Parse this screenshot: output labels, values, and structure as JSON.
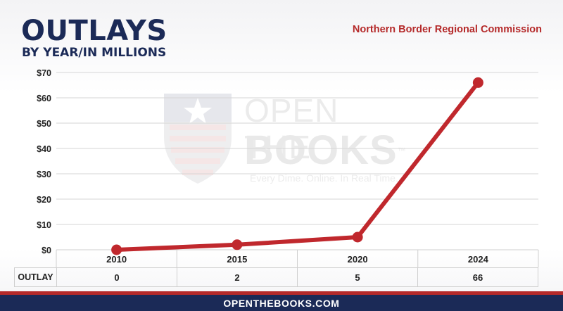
{
  "header": {
    "title": "OUTLAYS",
    "subtitle": "BY YEAR/IN MILLIONS",
    "agency": "Northern Border Regional Commission"
  },
  "watermark": {
    "line1": "OPEN THE",
    "line2": "BOOKS",
    "tm": "™",
    "tagline": "Every Dime. Online. In Real Time."
  },
  "footer": {
    "site": "OPENTHEBOOKS.COM"
  },
  "colors": {
    "navy": "#1b2a57",
    "red": "#b52a2a",
    "line": "#c0282d"
  },
  "chart_data": {
    "type": "line",
    "title": "OUTLAYS",
    "subtitle": "BY YEAR/IN MILLIONS",
    "categories": [
      "2010",
      "2015",
      "2020",
      "2024"
    ],
    "series": [
      {
        "name": "OUTLAY",
        "values": [
          0,
          2,
          5,
          66
        ]
      }
    ],
    "ylim": [
      0,
      70
    ],
    "yticks": [
      0,
      10,
      20,
      30,
      40,
      50,
      60,
      70
    ],
    "ytick_labels": [
      "$0",
      "$10",
      "$20",
      "$30",
      "$40",
      "$50",
      "$60",
      "$70"
    ],
    "grid": true,
    "table": {
      "row_label": "OUTLAY",
      "values": [
        "0",
        "2",
        "5",
        "66"
      ]
    }
  }
}
